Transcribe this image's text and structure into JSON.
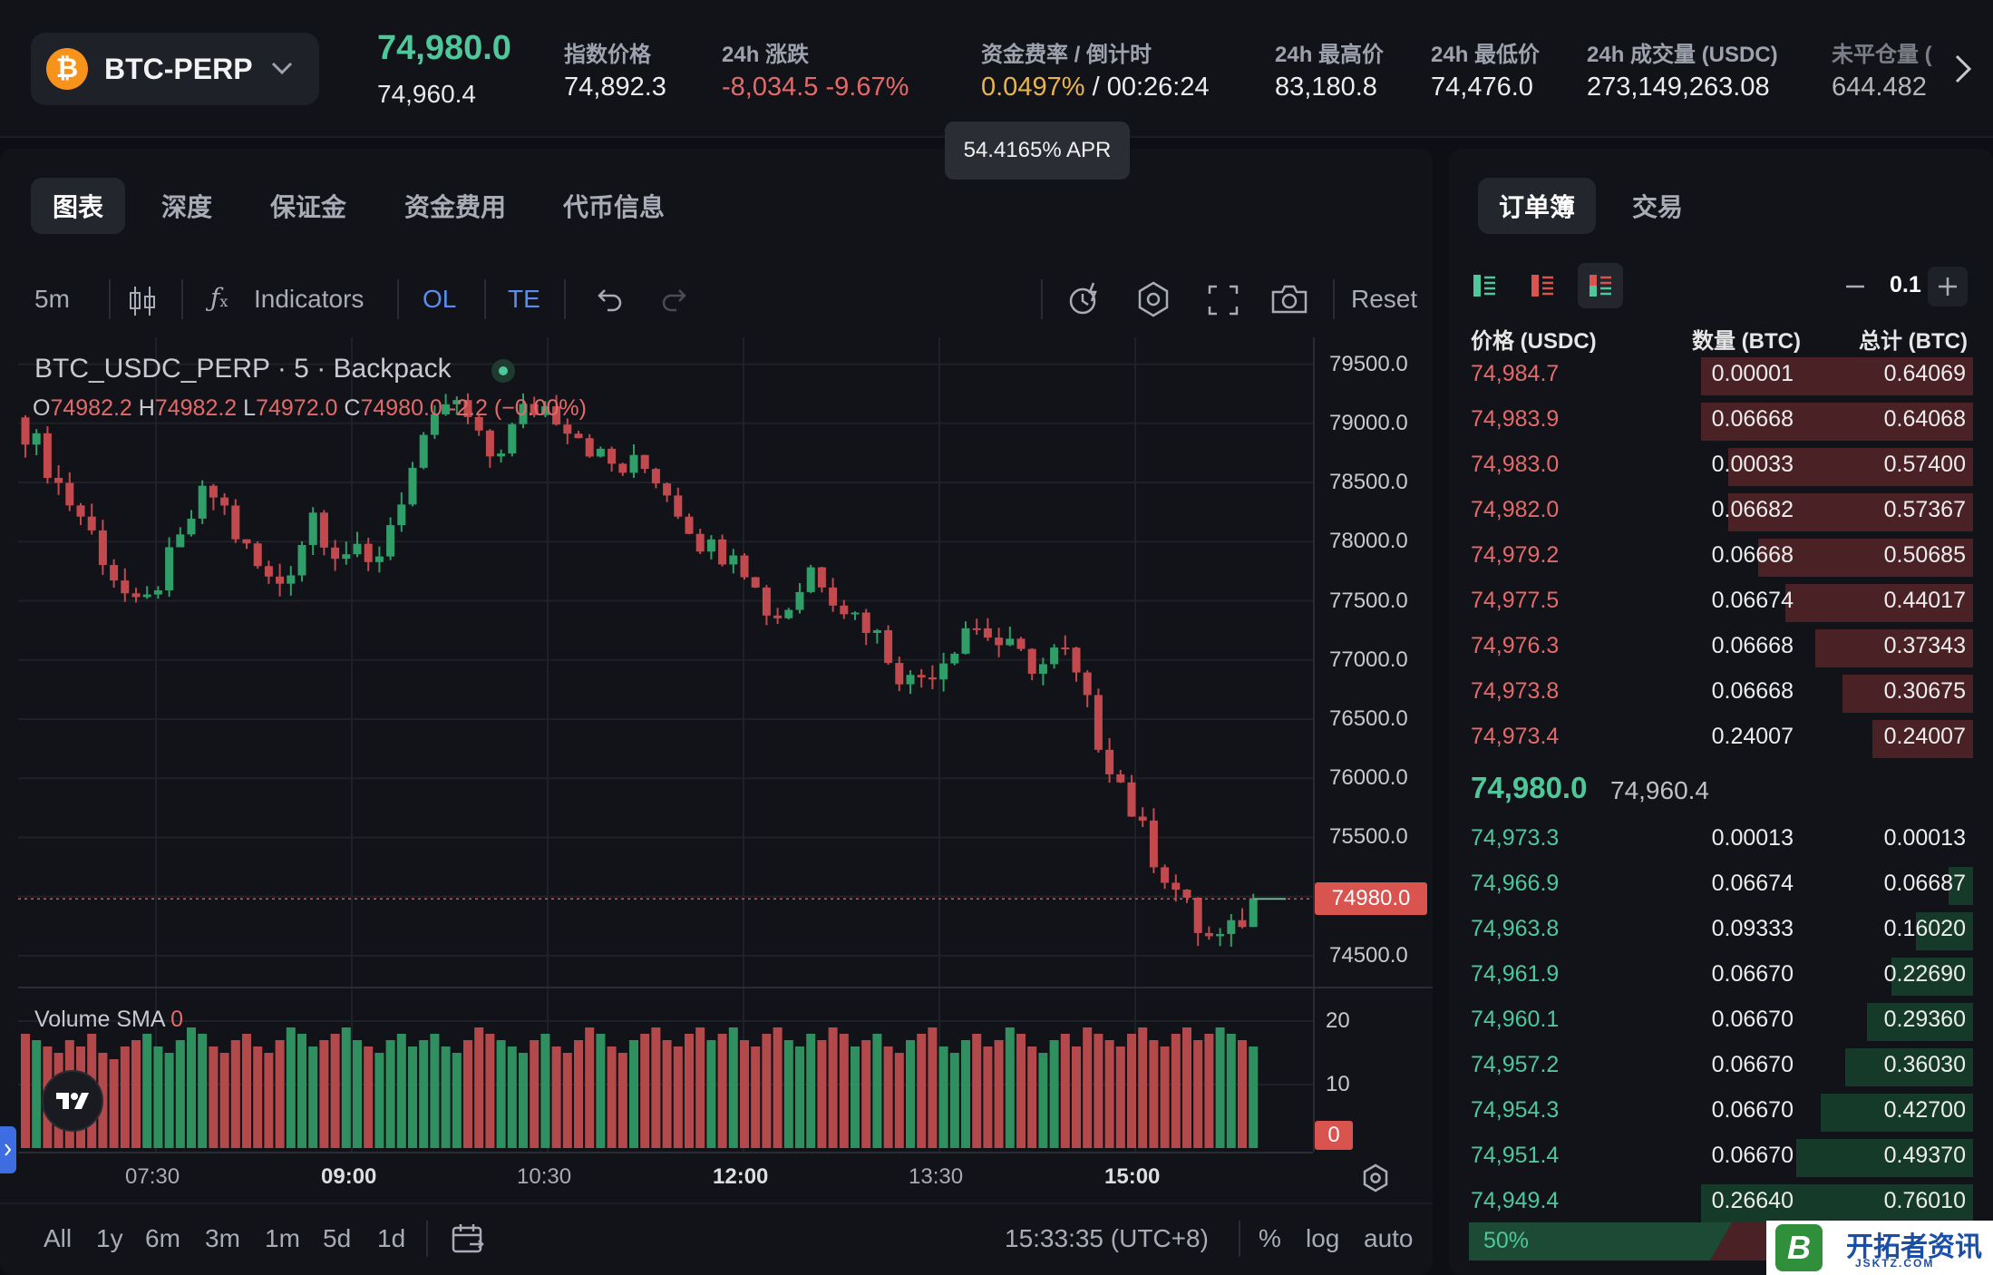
{
  "header": {
    "symbol": "BTC-PERP",
    "coin_glyph": "₿",
    "last_price": "74,980.0",
    "mark_price": "74,960.4",
    "stats": {
      "index_label": "指数价格",
      "index_value": "74,892.3",
      "change_label": "24h 涨跌",
      "change_value": "-8,034.5",
      "change_pct": "-9.67%",
      "funding_label": "资金费率 / 倒计时",
      "funding_rate": "0.0497%",
      "funding_sep": "/",
      "funding_countdown": "00:26:24",
      "high_label": "24h 最高价",
      "high_value": "83,180.8",
      "low_label": "24h 最低价",
      "low_value": "74,476.0",
      "volume_label": "24h 成交量 (USDC)",
      "volume_value": "273,149,263.08",
      "oi_label": "未平仓量 (",
      "oi_value": "644.482"
    },
    "apr_tooltip": "54.4165% APR"
  },
  "chart_tabs": [
    "图表",
    "深度",
    "保证金",
    "资金费用",
    "代币信息"
  ],
  "toolbar": {
    "interval": "5m",
    "indicators": "Indicators",
    "ol": "OL",
    "te": "TE",
    "reset": "Reset"
  },
  "legend": {
    "title": "BTC_USDC_PERP · 5 · Backpack",
    "o_label": "O",
    "o_value": "74982.2",
    "h_label": "H",
    "h_value": "74982.2",
    "l_label": "L",
    "l_value": "74972.0",
    "c_label": "C",
    "c_value": "74980.0",
    "change": "-2.2 (−0.00%)",
    "volume_label": "Volume SMA",
    "volume_value": "0"
  },
  "bottom_bar": {
    "ranges": [
      "All",
      "1y",
      "6m",
      "3m",
      "1m",
      "5d",
      "1d"
    ],
    "clock": "15:33:35 (UTC+8)",
    "percent": "%",
    "log": "log",
    "auto": "auto"
  },
  "chart_data": {
    "type": "candlestick",
    "title": "BTC_USDC_PERP · 5 · Backpack",
    "y_ticks": [
      "79500.0",
      "79000.0",
      "78500.0",
      "78000.0",
      "77500.0",
      "77000.0",
      "76500.0",
      "76000.0",
      "75500.0",
      "75000.0",
      "74500.0"
    ],
    "ylim": [
      74300,
      79650
    ],
    "x_ticks": [
      {
        "label": "07:30",
        "bold": false
      },
      {
        "label": "09:00",
        "bold": true
      },
      {
        "label": "10:30",
        "bold": false
      },
      {
        "label": "12:00",
        "bold": true
      },
      {
        "label": "13:30",
        "bold": false
      },
      {
        "label": "15:00",
        "bold": true
      }
    ],
    "volume_ticks": [
      "20",
      "10",
      "0"
    ],
    "volume_max": 24,
    "current_price": "74980.0",
    "current_price_value": 74980,
    "close_path": [
      78950,
      78700,
      78400,
      78200,
      77900,
      77600,
      77350,
      77700,
      77950,
      78350,
      78400,
      78050,
      77800,
      77600,
      77850,
      78250,
      77950,
      77900,
      77750,
      78150,
      78550,
      78850,
      79200,
      79050,
      78700,
      78850,
      79100,
      79150,
      79050,
      78900,
      78700,
      78600,
      78650,
      78550,
      78300,
      78050,
      77900,
      78000,
      77600,
      77350,
      77500,
      77800,
      77600,
      77400,
      77300,
      77050,
      76800,
      76900,
      77050,
      77300,
      77250,
      77100,
      77000,
      76950,
      77100,
      76750,
      76300,
      76000,
      75600,
      75300,
      75050,
      74750,
      74600,
      74700,
      74980
    ],
    "volumes": [
      18,
      17,
      16,
      15,
      17,
      16,
      18,
      15,
      14,
      16,
      17,
      18,
      16,
      15,
      17,
      19,
      18,
      16,
      15,
      17,
      18,
      16,
      15,
      17,
      19,
      18,
      16,
      17,
      18,
      19,
      17,
      16,
      15,
      17,
      18,
      16,
      17,
      18,
      16,
      15,
      17,
      19,
      18,
      17,
      16,
      15,
      17,
      18,
      16,
      15,
      17,
      19,
      18,
      16,
      15,
      17,
      18,
      19,
      17,
      16,
      18,
      19,
      17,
      18,
      19,
      17,
      16,
      18,
      19,
      17,
      16,
      18,
      17,
      19,
      18,
      16,
      17,
      18,
      16,
      15,
      17,
      18,
      19,
      16,
      15,
      17,
      18,
      16,
      17,
      19,
      18,
      16,
      15,
      17,
      18,
      16,
      19,
      18,
      17,
      16,
      18,
      19,
      17,
      16,
      18,
      19,
      17,
      18,
      19,
      18,
      17,
      16,
      0,
      0,
      0,
      0,
      0,
      0
    ]
  },
  "order_book": {
    "tabs": [
      "订单簿",
      "交易"
    ],
    "tick_size": "0.1",
    "headers": {
      "price": "价格 (USDC)",
      "qty": "数量 (BTC)",
      "total": "总计 (BTC)"
    },
    "asks": [
      {
        "price": "74,984.7",
        "qty": "0.00001",
        "total": "0.64069",
        "depth": 1.0
      },
      {
        "price": "74,983.9",
        "qty": "0.06668",
        "total": "0.64068",
        "depth": 1.0
      },
      {
        "price": "74,983.0",
        "qty": "0.00033",
        "total": "0.57400",
        "depth": 0.9
      },
      {
        "price": "74,982.0",
        "qty": "0.06682",
        "total": "0.57367",
        "depth": 0.9
      },
      {
        "price": "74,979.2",
        "qty": "0.06668",
        "total": "0.50685",
        "depth": 0.79
      },
      {
        "price": "74,977.5",
        "qty": "0.06674",
        "total": "0.44017",
        "depth": 0.69
      },
      {
        "price": "74,976.3",
        "qty": "0.06668",
        "total": "0.37343",
        "depth": 0.58
      },
      {
        "price": "74,973.8",
        "qty": "0.06668",
        "total": "0.30675",
        "depth": 0.48
      },
      {
        "price": "74,973.4",
        "qty": "0.24007",
        "total": "0.24007",
        "depth": 0.37
      }
    ],
    "mid_last": "74,980.0",
    "mid_mark": "74,960.4",
    "bids": [
      {
        "price": "74,973.3",
        "qty": "0.00013",
        "total": "0.00013",
        "depth": 0.0
      },
      {
        "price": "74,966.9",
        "qty": "0.06674",
        "total": "0.06687",
        "depth": 0.09
      },
      {
        "price": "74,963.8",
        "qty": "0.09333",
        "total": "0.16020",
        "depth": 0.21
      },
      {
        "price": "74,961.9",
        "qty": "0.06670",
        "total": "0.22690",
        "depth": 0.3
      },
      {
        "price": "74,960.1",
        "qty": "0.06670",
        "total": "0.29360",
        "depth": 0.39
      },
      {
        "price": "74,957.2",
        "qty": "0.06670",
        "total": "0.36030",
        "depth": 0.47
      },
      {
        "price": "74,954.3",
        "qty": "0.06670",
        "total": "0.42700",
        "depth": 0.56
      },
      {
        "price": "74,951.4",
        "qty": "0.06670",
        "total": "0.49370",
        "depth": 0.65
      },
      {
        "price": "74,949.4",
        "qty": "0.26640",
        "total": "0.76010",
        "depth": 1.0
      }
    ],
    "ratio": "50%"
  },
  "watermark": {
    "mark": "B",
    "text": "开拓者资讯",
    "sub": "JSKTZ.COM"
  },
  "colors": {
    "up": "#2f8f5e",
    "down": "#b4494c",
    "accent": "#4ec79a",
    "ask_bar": "#4a2226",
    "bid_bar": "#163a2a"
  }
}
